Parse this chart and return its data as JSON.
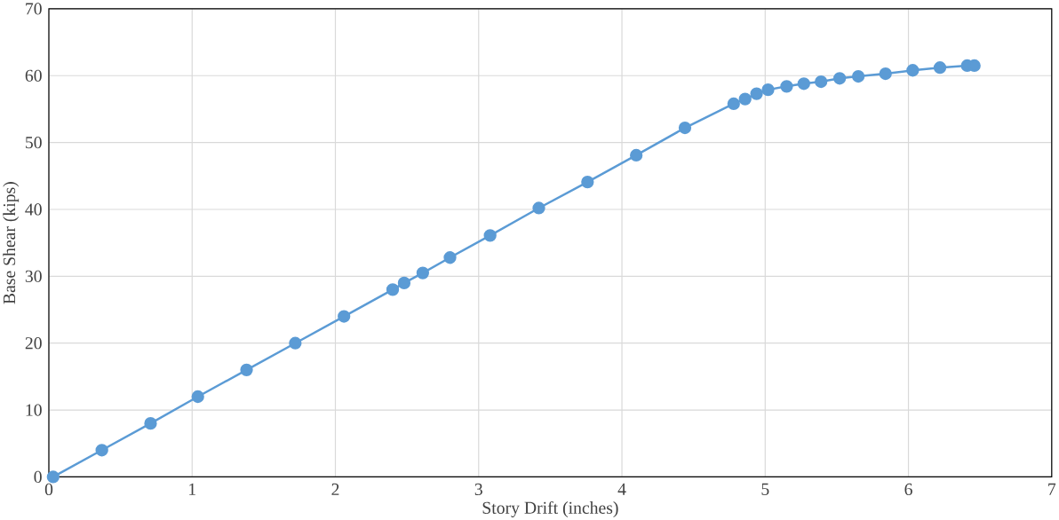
{
  "chart_data": {
    "type": "line",
    "xlabel": "Story Drift (inches)",
    "ylabel": "Base Shear (kips)",
    "xlim": [
      0,
      7
    ],
    "xticks": [
      0,
      1,
      2,
      3,
      4,
      5,
      6,
      7
    ],
    "ylim": [
      0,
      70
    ],
    "yticks": [
      0,
      10,
      20,
      30,
      40,
      50,
      60,
      70
    ],
    "grid": true,
    "marker": "circle",
    "line_style": "solid",
    "series": [
      {
        "color": "#5b9bd5",
        "x": [
          0.03,
          0.37,
          0.71,
          1.04,
          1.38,
          1.72,
          2.06,
          2.4,
          2.48,
          2.61,
          2.8,
          3.08,
          3.42,
          3.76,
          4.1,
          4.44,
          4.78,
          4.86,
          4.94,
          5.02,
          5.15,
          5.27,
          5.39,
          5.52,
          5.65,
          5.84,
          6.03,
          6.22,
          6.41,
          6.46
        ],
        "values": [
          0,
          4,
          8,
          12,
          16,
          20,
          24,
          28,
          29,
          30.5,
          32.8,
          36.1,
          40.2,
          44.1,
          48.1,
          52.2,
          55.8,
          56.5,
          57.3,
          57.9,
          58.4,
          58.8,
          59.1,
          59.6,
          59.9,
          60.3,
          60.8,
          61.2,
          61.5,
          61.5
        ]
      }
    ]
  }
}
